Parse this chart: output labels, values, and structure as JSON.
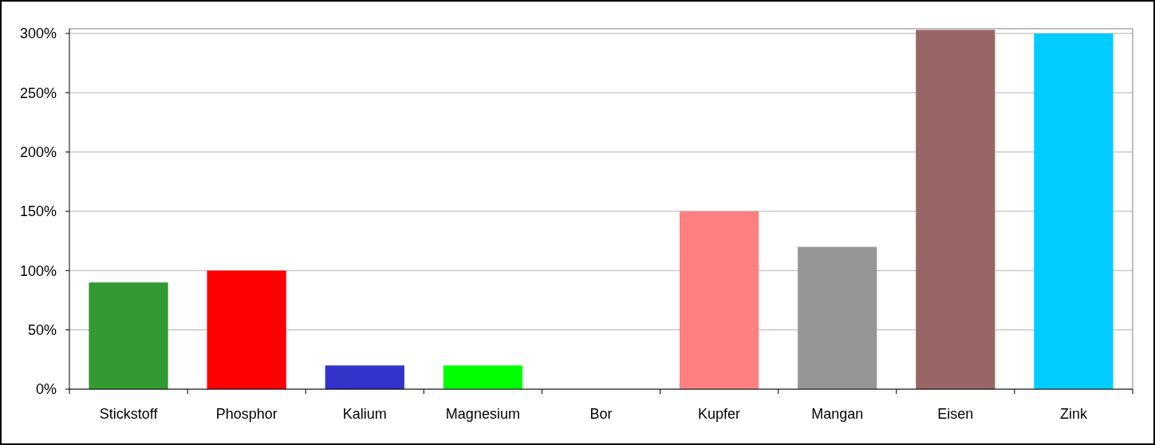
{
  "chart_data": {
    "type": "bar",
    "categories": [
      "Stickstoff",
      "Phosphor",
      "Kalium",
      "Magnesium",
      "Bor",
      "Kupfer",
      "Mangan",
      "Eisen",
      "Zink"
    ],
    "values": [
      90,
      100,
      20,
      20,
      0,
      150,
      120,
      303,
      300
    ],
    "colors": [
      "#339933",
      "#ff0000",
      "#3333cc",
      "#00ff00",
      "#808080",
      "#ff8080",
      "#969696",
      "#996666",
      "#00ccff"
    ],
    "ylim": [
      0,
      304
    ],
    "yticks": [
      {
        "value": 0,
        "label": "0%"
      },
      {
        "value": 50,
        "label": "50%"
      },
      {
        "value": 100,
        "label": "100%"
      },
      {
        "value": 150,
        "label": "150%"
      },
      {
        "value": 200,
        "label": "200%"
      },
      {
        "value": 250,
        "label": "250%"
      },
      {
        "value": 300,
        "label": "300%"
      }
    ],
    "grid": "y"
  }
}
